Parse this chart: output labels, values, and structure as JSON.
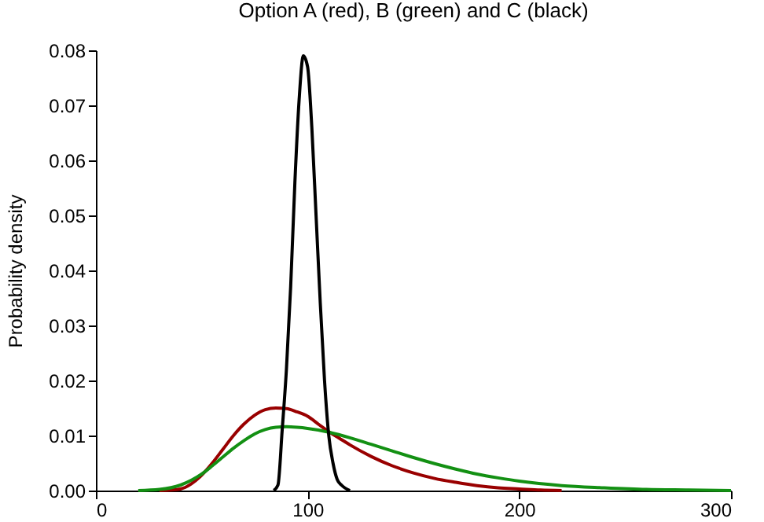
{
  "chart_data": {
    "type": "line",
    "title": "Option A (red), B (green) and C (black)",
    "ylabel": "Probability density",
    "xlim": [
      0,
      300
    ],
    "xticks": [
      0,
      100,
      200,
      300
    ],
    "ylim": [
      0,
      0.08
    ],
    "yticks": [
      {
        "value": 0,
        "label": "0.00"
      },
      {
        "value": 0.01,
        "label": "0.01"
      },
      {
        "value": 0.02,
        "label": "0.02"
      },
      {
        "value": 0.03,
        "label": "0.03"
      },
      {
        "value": 0.04,
        "label": "0.04"
      },
      {
        "value": 0.05,
        "label": "0.05"
      },
      {
        "value": 0.06,
        "label": "0.06"
      },
      {
        "value": 0.07,
        "label": "0.07"
      },
      {
        "value": 0.08,
        "label": "0.08"
      }
    ],
    "grid": false,
    "marker": "none",
    "line_style": "solid",
    "series": [
      {
        "color": "#990000",
        "x": [
          30,
          40,
          45,
          50,
          55,
          60,
          65,
          70,
          75,
          80,
          85,
          90,
          95,
          100,
          105,
          110,
          115,
          120,
          130,
          140,
          150,
          160,
          170,
          180,
          190,
          200,
          210,
          220
        ],
        "values": [
          0,
          0.0003,
          0.0012,
          0.0028,
          0.005,
          0.0075,
          0.01,
          0.0121,
          0.0137,
          0.0147,
          0.015,
          0.0149,
          0.0143,
          0.0135,
          0.0121,
          0.0107,
          0.0095,
          0.0083,
          0.0062,
          0.0045,
          0.0032,
          0.0022,
          0.0015,
          0.0009,
          0.0005,
          0.0003,
          0.0001,
          0
        ]
      },
      {
        "color": "#139013",
        "x": [
          20,
          30,
          40,
          50,
          55,
          60,
          65,
          70,
          75,
          80,
          85,
          90,
          95,
          100,
          105,
          110,
          120,
          130,
          140,
          150,
          160,
          170,
          180,
          190,
          200,
          220,
          240,
          260,
          280,
          300
        ],
        "values": [
          0,
          0.0002,
          0.001,
          0.003,
          0.0045,
          0.0061,
          0.0077,
          0.0091,
          0.0103,
          0.0111,
          0.0115,
          0.0116,
          0.0115,
          0.0113,
          0.011,
          0.0106,
          0.0096,
          0.0084,
          0.0072,
          0.006,
          0.0049,
          0.0039,
          0.003,
          0.0023,
          0.0017,
          0.0009,
          0.0005,
          0.0002,
          0.0001,
          0
        ]
      },
      {
        "color": "#000000",
        "x": [
          84,
          86,
          88,
          90,
          92,
          94,
          96,
          98,
          100,
          102,
          104,
          106,
          108,
          110,
          112,
          114,
          116,
          120
        ],
        "values": [
          0,
          0.001,
          0.011,
          0.022,
          0.037,
          0.056,
          0.071,
          0.079,
          0.077,
          0.066,
          0.05,
          0.034,
          0.02,
          0.01,
          0.005,
          0.002,
          0.001,
          0
        ]
      }
    ]
  }
}
